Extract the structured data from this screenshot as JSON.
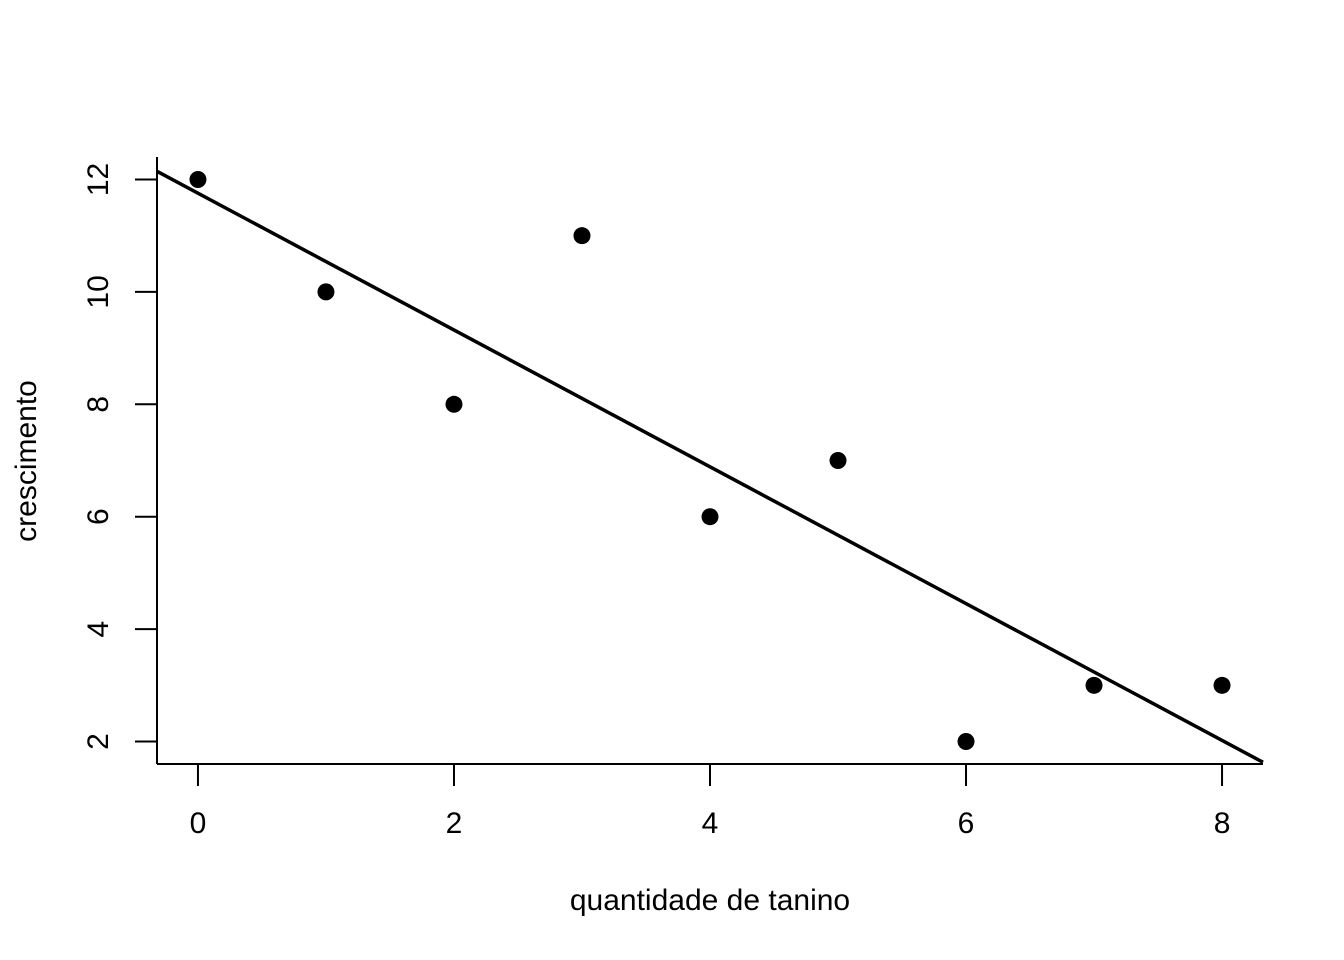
{
  "chart_data": {
    "type": "scatter",
    "title": "",
    "xlabel": "quantidade de tanino",
    "ylabel": "crescimento",
    "x": [
      0,
      1,
      2,
      3,
      4,
      5,
      6,
      7,
      8
    ],
    "y": [
      12,
      10,
      8,
      11,
      6,
      7,
      2,
      3,
      3
    ],
    "xlim": [
      -0.32,
      8.32
    ],
    "ylim": [
      1.6,
      12.4
    ],
    "xticks": [
      0,
      2,
      4,
      6,
      8
    ],
    "yticks": [
      2,
      4,
      6,
      8,
      10,
      12
    ],
    "regression_line": {
      "intercept": 11.756,
      "slope": -1.217
    },
    "grid": false,
    "legend": "none",
    "point_color": "#000000",
    "line_color": "#000000"
  }
}
